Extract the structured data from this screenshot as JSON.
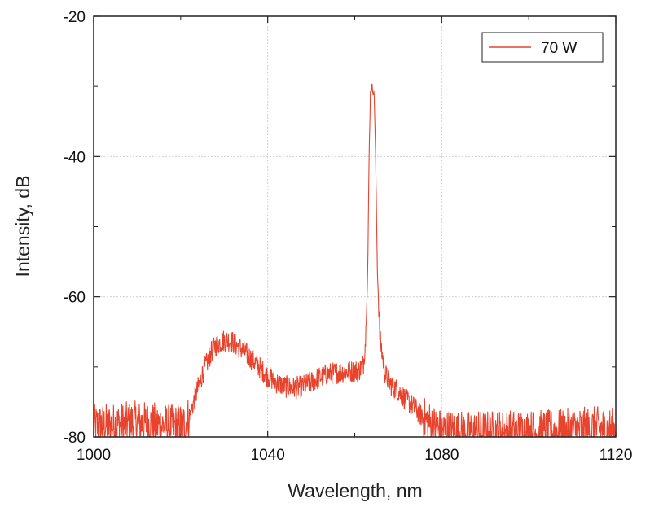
{
  "chart_data": {
    "type": "line",
    "xlabel": "Wavelength, nm",
    "ylabel": "Intensity, dB",
    "xlim": [
      1000,
      1120
    ],
    "ylim": [
      -80,
      -20
    ],
    "xticks": [
      "1000",
      "1040",
      "1080",
      "1120"
    ],
    "yticks": [
      "-20",
      "-40",
      "-60",
      "-80"
    ],
    "grid": true,
    "legend_position": "top-right",
    "series": [
      {
        "name": "70 W",
        "color": "#e8432d",
        "x": [
          1000,
          1005,
          1010,
          1015,
          1019,
          1021,
          1022,
          1023,
          1024,
          1025,
          1026,
          1027,
          1028,
          1029,
          1030,
          1031,
          1032,
          1034,
          1036,
          1038,
          1040,
          1042,
          1044,
          1046,
          1048,
          1050,
          1052,
          1054,
          1056,
          1058,
          1060,
          1061,
          1062,
          1062.5,
          1063,
          1063.3,
          1063.6,
          1063.9,
          1064.2,
          1064.5,
          1064.8,
          1065.2,
          1065.8,
          1067,
          1068,
          1070,
          1072,
          1074,
          1076,
          1078,
          1080,
          1085,
          1090,
          1095,
          1100,
          1105,
          1110,
          1115,
          1120
        ],
        "y": [
          -78.5,
          -78.3,
          -78.0,
          -78.3,
          -78.5,
          -78.2,
          -77,
          -75,
          -73,
          -71,
          -69.5,
          -68,
          -67,
          -66.5,
          -66.2,
          -66.2,
          -66.5,
          -67.5,
          -68.7,
          -70,
          -71.3,
          -72.2,
          -72.8,
          -73,
          -72.8,
          -72.2,
          -71.5,
          -71,
          -70.8,
          -70.7,
          -70.6,
          -70.5,
          -69.5,
          -66,
          -56,
          -40,
          -31,
          -30,
          -30.5,
          -31.5,
          -40,
          -56,
          -66,
          -71,
          -72.3,
          -73.5,
          -74.8,
          -76,
          -77.5,
          -78.5,
          -79.2,
          -79.4,
          -79.4,
          -79.3,
          -79.3,
          -79.3,
          -79.0,
          -78.8,
          -79.0
        ]
      }
    ]
  }
}
